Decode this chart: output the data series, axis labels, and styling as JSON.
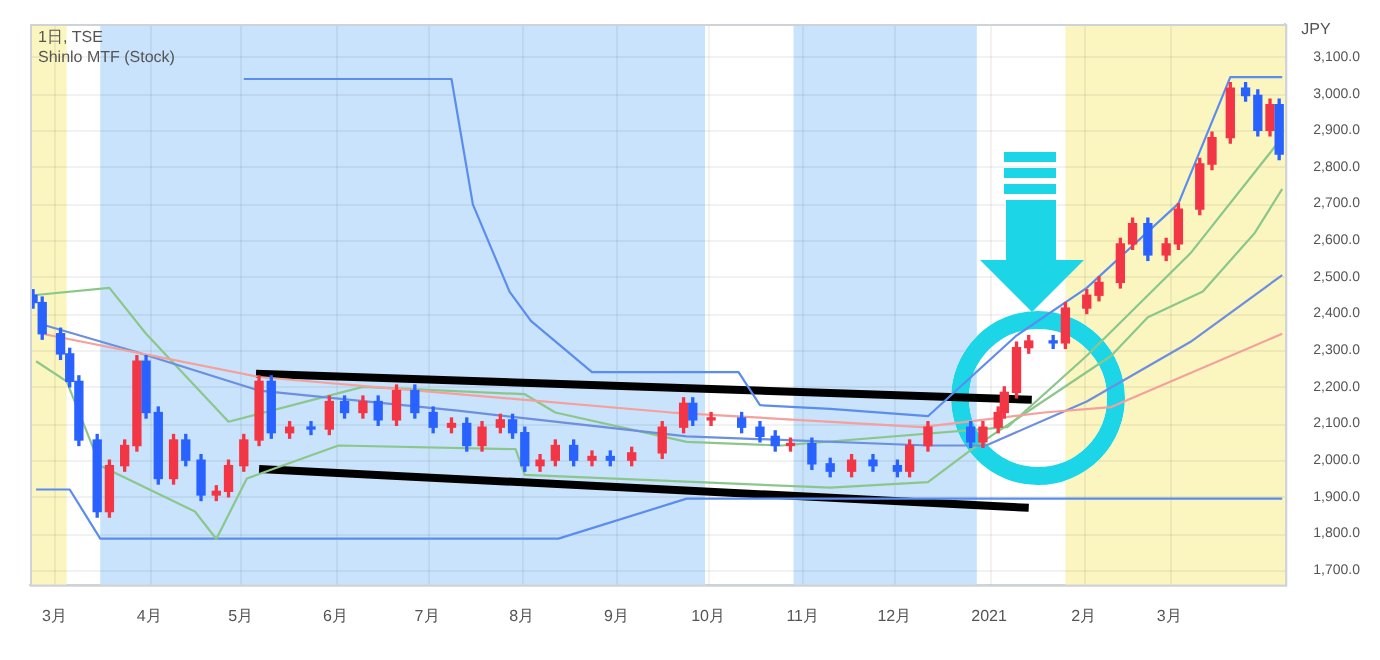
{
  "chart_data": {
    "type": "candlestick",
    "title": "1日, TSE",
    "subtitle": "Shinlo MTF (Stock)",
    "ylabel": "JPY",
    "x": [
      "2020-02-23",
      "2020-02-26",
      "2020-03-03",
      "2020-03-06",
      "2020-03-09",
      "2020-03-15",
      "2020-03-19",
      "2020-03-24",
      "2020-03-28",
      "2020-03-31",
      "2020-04-04",
      "2020-04-09",
      "2020-04-13",
      "2020-04-18",
      "2020-04-23",
      "2020-04-27",
      "2020-05-02",
      "2020-05-07",
      "2020-05-11",
      "2020-05-17",
      "2020-05-24",
      "2020-05-30",
      "2020-06-04",
      "2020-06-10",
      "2020-06-15",
      "2020-06-21",
      "2020-06-27",
      "2020-07-03",
      "2020-07-09",
      "2020-07-14",
      "2020-07-19",
      "2020-07-25",
      "2020-07-29",
      "2020-08-02",
      "2020-08-07",
      "2020-08-12",
      "2020-08-18",
      "2020-08-24",
      "2020-08-30",
      "2020-09-06",
      "2020-09-16",
      "2020-09-23",
      "2020-09-26",
      "2020-10-02",
      "2020-10-12",
      "2020-10-18",
      "2020-10-23",
      "2020-10-28",
      "2020-11-04",
      "2020-11-10",
      "2020-11-17",
      "2020-11-24",
      "2020-12-02",
      "2020-12-06",
      "2020-12-12",
      "2020-12-26",
      "2020-12-30",
      "2021-01-04",
      "2021-01-06",
      "2021-01-10",
      "2021-01-14",
      "2021-01-22",
      "2021-01-26",
      "2021-02-02",
      "2021-02-06",
      "2021-02-13",
      "2021-02-17",
      "2021-02-22",
      "2021-02-28",
      "2021-03-04",
      "2021-03-11",
      "2021-03-15",
      "2021-03-21",
      "2021-03-26",
      "2021-03-30",
      "2021-04-03",
      "2021-04-06"
    ],
    "ohlc": [
      [
        2450,
        2465,
        2415,
        2430
      ],
      [
        2430,
        2445,
        2330,
        2345
      ],
      [
        2345,
        2360,
        2275,
        2290
      ],
      [
        2290,
        2305,
        2200,
        2215
      ],
      [
        2215,
        2230,
        2040,
        2055
      ],
      [
        2055,
        2070,
        1845,
        1860
      ],
      [
        1860,
        2000,
        1845,
        1985
      ],
      [
        1985,
        2055,
        1970,
        2040
      ],
      [
        2040,
        2285,
        2025,
        2270
      ],
      [
        2270,
        2285,
        2115,
        2130
      ],
      [
        2130,
        2145,
        1935,
        1950
      ],
      [
        1950,
        2070,
        1935,
        2055
      ],
      [
        2055,
        2070,
        1985,
        2000
      ],
      [
        2000,
        2015,
        1890,
        1905
      ],
      [
        1905,
        1930,
        1890,
        1915
      ],
      [
        1915,
        2000,
        1900,
        1985
      ],
      [
        1985,
        2070,
        1970,
        2055
      ],
      [
        2055,
        2230,
        2040,
        2215
      ],
      [
        2215,
        2230,
        2060,
        2075
      ],
      [
        2075,
        2105,
        2060,
        2090
      ],
      [
        2090,
        2105,
        2070,
        2085
      ],
      [
        2085,
        2175,
        2070,
        2160
      ],
      [
        2160,
        2175,
        2115,
        2130
      ],
      [
        2130,
        2175,
        2115,
        2160
      ],
      [
        2160,
        2175,
        2095,
        2110
      ],
      [
        2110,
        2205,
        2095,
        2190
      ],
      [
        2190,
        2205,
        2115,
        2130
      ],
      [
        2130,
        2145,
        2075,
        2090
      ],
      [
        2090,
        2115,
        2075,
        2100
      ],
      [
        2100,
        2115,
        2025,
        2040
      ],
      [
        2040,
        2105,
        2025,
        2090
      ],
      [
        2090,
        2125,
        2075,
        2110
      ],
      [
        2110,
        2125,
        2060,
        2075
      ],
      [
        2075,
        2090,
        1970,
        1985
      ],
      [
        1985,
        2015,
        1970,
        2000
      ],
      [
        2000,
        2055,
        1985,
        2040
      ],
      [
        2040,
        2055,
        1985,
        2000
      ],
      [
        2000,
        2025,
        1985,
        2010
      ],
      [
        2010,
        2025,
        1985,
        2000
      ],
      [
        2000,
        2035,
        1985,
        2020
      ],
      [
        2020,
        2105,
        2005,
        2090
      ],
      [
        2090,
        2170,
        2075,
        2155
      ],
      [
        2155,
        2170,
        2095,
        2110
      ],
      [
        2110,
        2130,
        2095,
        2115
      ],
      [
        2115,
        2130,
        2075,
        2090
      ],
      [
        2090,
        2105,
        2050,
        2065
      ],
      [
        2065,
        2080,
        2025,
        2040
      ],
      [
        2040,
        2060,
        2025,
        2045
      ],
      [
        2045,
        2060,
        1975,
        1990
      ],
      [
        1990,
        2005,
        1955,
        1970
      ],
      [
        1970,
        2015,
        1955,
        2000
      ],
      [
        2000,
        2015,
        1970,
        1985
      ],
      [
        1985,
        2000,
        1955,
        1970
      ],
      [
        1970,
        2055,
        1955,
        2040
      ],
      [
        2040,
        2105,
        2025,
        2090
      ],
      [
        2090,
        2105,
        2035,
        2050
      ],
      [
        2050,
        2105,
        2035,
        2090
      ],
      [
        2090,
        2145,
        2075,
        2130
      ],
      [
        2130,
        2200,
        2115,
        2185
      ],
      [
        2185,
        2322,
        2170,
        2307
      ],
      [
        2307,
        2340,
        2292,
        2325
      ],
      [
        2325,
        2340,
        2305,
        2320
      ],
      [
        2320,
        2430,
        2305,
        2415
      ],
      [
        2415,
        2465,
        2400,
        2450
      ],
      [
        2450,
        2500,
        2435,
        2485
      ],
      [
        2485,
        2605,
        2470,
        2590
      ],
      [
        2590,
        2660,
        2575,
        2645
      ],
      [
        2645,
        2660,
        2545,
        2560
      ],
      [
        2560,
        2605,
        2545,
        2590
      ],
      [
        2590,
        2700,
        2575,
        2685
      ],
      [
        2685,
        2823,
        2670,
        2808
      ],
      [
        2808,
        2895,
        2793,
        2880
      ],
      [
        2880,
        3030,
        2865,
        3015
      ],
      [
        3015,
        3030,
        2980,
        2995
      ],
      [
        2995,
        3010,
        2885,
        2900
      ],
      [
        2900,
        2985,
        2885,
        2970
      ],
      [
        2970,
        2985,
        2820,
        2835
      ]
    ],
    "colors": [
      "#2962ff",
      "#2962ff",
      "#2962ff",
      "#2962ff",
      "#2962ff",
      "#2962ff",
      "#f23645",
      "#f23645",
      "#f23645",
      "#2962ff",
      "#2962ff",
      "#f23645",
      "#2962ff",
      "#2962ff",
      "#f23645",
      "#f23645",
      "#f23645",
      "#f23645",
      "#2962ff",
      "#f23645",
      "#2962ff",
      "#f23645",
      "#2962ff",
      "#f23645",
      "#2962ff",
      "#f23645",
      "#2962ff",
      "#2962ff",
      "#f23645",
      "#2962ff",
      "#f23645",
      "#f23645",
      "#2962ff",
      "#2962ff",
      "#f23645",
      "#f23645",
      "#2962ff",
      "#f23645",
      "#2962ff",
      "#f23645",
      "#f23645",
      "#f23645",
      "#2962ff",
      "#f23645",
      "#2962ff",
      "#2962ff",
      "#2962ff",
      "#f23645",
      "#2962ff",
      "#2962ff",
      "#f23645",
      "#2962ff",
      "#2962ff",
      "#f23645",
      "#f23645",
      "#2962ff",
      "#f23645",
      "#f23645",
      "#f23645",
      "#f23645",
      "#f23645",
      "#2962ff",
      "#f23645",
      "#f23645",
      "#f23645",
      "#f23645",
      "#f23645",
      "#2962ff",
      "#f23645",
      "#f23645",
      "#f23645",
      "#f23645",
      "#f23645",
      "#2962ff",
      "#2962ff",
      "#f23645",
      "#2962ff"
    ],
    "series": [
      {
        "type": "line",
        "color": "#f4a09c",
        "x": [
          "2020-02-26",
          "2020-05-07",
          "2020-09-19",
          "2020-12-10",
          "2021-01-19",
          "2021-02-10",
          "2021-04-07"
        ],
        "values": [
          2345,
          2227,
          2130,
          2090,
          2130,
          2145,
          2345
        ]
      },
      {
        "type": "line",
        "color": "#6c8fe0",
        "x": [
          "2020-02-26",
          "2020-03-27",
          "2020-05-07",
          "2020-07-11",
          "2020-09-24",
          "2020-12-12",
          "2020-12-31",
          "2021-02-02",
          "2021-03-08",
          "2021-04-07"
        ],
        "values": [
          2370,
          2297,
          2190,
          2135,
          2065,
          2040,
          2040,
          2160,
          2323,
          2505
        ]
      },
      {
        "type": "line",
        "color": "#8bc78b",
        "x": [
          "2020-02-23",
          "2020-03-19",
          "2020-03-31",
          "2020-04-27",
          "2020-06-10",
          "2020-08-02",
          "2020-08-12",
          "2020-09-24",
          "2020-10-25",
          "2021-01-07",
          "2021-02-02",
          "2021-03-08",
          "2021-04-06"
        ],
        "values": [
          2450,
          2470,
          2345,
          2105,
          2200,
          2180,
          2130,
          2050,
          2040,
          2090,
          2285,
          2565,
          2870
        ]
      },
      {
        "type": "line",
        "color": "#8bc78b",
        "x": [
          "2020-02-24",
          "2020-03-05",
          "2020-03-16",
          "2020-04-16",
          "2020-04-23",
          "2020-05-03",
          "2020-06-02",
          "2020-07-30",
          "2020-08-02",
          "2020-11-10",
          "2020-12-12",
          "2020-12-28",
          "2021-02-10",
          "2021-02-22",
          "2021-03-12",
          "2021-03-29",
          "2021-04-07"
        ],
        "values": [
          2270,
          2215,
          1985,
          1860,
          1785,
          1950,
          2040,
          2030,
          1960,
          1925,
          1940,
          2040,
          2285,
          2390,
          2460,
          2620,
          2740
        ]
      },
      {
        "type": "line",
        "color": "#5b8def",
        "x": [
          "2020-05-02",
          "2020-07-09",
          "2020-07-16",
          "2020-07-28",
          "2020-08-04",
          "2020-08-24",
          "2020-10-11",
          "2020-10-18",
          "2020-11-10",
          "2020-12-12",
          "2021-01-10",
          "2021-02-02",
          "2021-03-04",
          "2021-03-21",
          "2021-04-07"
        ],
        "values": [
          3040,
          3040,
          2698,
          2460,
          2380,
          2240,
          2240,
          2150,
          2140,
          2120,
          2340,
          2470,
          2700,
          3045,
          3045
        ]
      },
      {
        "type": "line",
        "color": "#5b8def",
        "x": [
          "2020-02-24",
          "2020-03-06",
          "2020-03-16",
          "2020-08-13",
          "2020-09-24",
          "2020-11-12",
          "2021-04-07"
        ],
        "values": [
          1920,
          1920,
          1786,
          1786,
          1895,
          1895,
          1895
        ]
      },
      {
        "type": "line",
        "color": "#000000",
        "x": [
          "2020-05-06",
          "2021-01-15"
        ],
        "values": [
          2236,
          2165
        ]
      },
      {
        "type": "line",
        "color": "#000000",
        "x": [
          "2020-05-07",
          "2021-01-14"
        ],
        "values": [
          1976,
          1870
        ]
      }
    ],
    "bands": [
      {
        "axis": "x",
        "from": "2020-02-22",
        "to": "2020-03-05",
        "color": "#fbf5c0"
      },
      {
        "axis": "x",
        "from": "2020-03-16",
        "to": "2020-09-30",
        "color": "#c8e3fb"
      },
      {
        "axis": "x",
        "from": "2020-10-29",
        "to": "2020-12-28",
        "color": "#c8e3fb"
      },
      {
        "axis": "x",
        "from": "2021-01-26",
        "to": "2021-04-08",
        "color": "#fbf5c0"
      }
    ],
    "xlim": [
      "2020-02-22",
      "2021-04-08"
    ],
    "xticks": [
      {
        "value": "2020-03-01",
        "label": "3月"
      },
      {
        "value": "2020-04-01",
        "label": "4月"
      },
      {
        "value": "2020-05-01",
        "label": "5月"
      },
      {
        "value": "2020-06-01",
        "label": "6月"
      },
      {
        "value": "2020-07-01",
        "label": "7月"
      },
      {
        "value": "2020-08-01",
        "label": "8月"
      },
      {
        "value": "2020-09-01",
        "label": "9月"
      },
      {
        "value": "2020-10-01",
        "label": "10月"
      },
      {
        "value": "2020-11-01",
        "label": "11月"
      },
      {
        "value": "2020-12-01",
        "label": "12月"
      },
      {
        "value": "2021-01-01",
        "label": "2021"
      },
      {
        "value": "2021-02-01",
        "label": "2月"
      },
      {
        "value": "2021-03-01",
        "label": "3月"
      }
    ],
    "ylim": [
      1660,
      3190
    ],
    "yticks": [
      {
        "value": 1700,
        "label": "1,700.0"
      },
      {
        "value": 1800,
        "label": "1,800.0"
      },
      {
        "value": 1900,
        "label": "1,900.0"
      },
      {
        "value": 2000,
        "label": "2,000.0"
      },
      {
        "value": 2100,
        "label": "2,100.0"
      },
      {
        "value": 2200,
        "label": "2,200.0"
      },
      {
        "value": 2300,
        "label": "2,300.0"
      },
      {
        "value": 2400,
        "label": "2,400.0"
      },
      {
        "value": 2500,
        "label": "2,500.0"
      },
      {
        "value": 2600,
        "label": "2,600.0"
      },
      {
        "value": 2700,
        "label": "2,700.0"
      },
      {
        "value": 2800,
        "label": "2,800.0"
      },
      {
        "value": 2900,
        "label": "2,900.0"
      },
      {
        "value": 3000,
        "label": "3,000.0"
      },
      {
        "value": 3100,
        "label": "3,100.0"
      }
    ],
    "grid": true,
    "legend": false
  }
}
